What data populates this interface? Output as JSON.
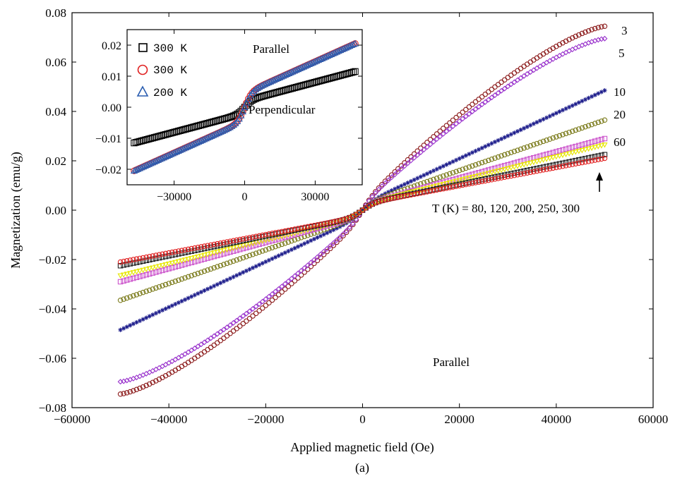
{
  "figure_label": "(a)",
  "chart_data": [
    {
      "type": "scatter",
      "xlabel": "Applied magnetic field (Oe)",
      "ylabel": "Magnetization (emu/g)",
      "xlim": [
        -60000,
        60000
      ],
      "ylim": [
        -0.08,
        0.08
      ],
      "xticks": [
        -60000,
        -40000,
        -20000,
        0,
        20000,
        40000,
        60000
      ],
      "yticks": [
        -0.08,
        -0.06,
        -0.04,
        -0.02,
        0.0,
        0.02,
        0.04,
        0.06,
        0.08
      ],
      "x_tick_labels": [
        "−60000",
        "−40000",
        "−20000",
        "0",
        "20000",
        "40000",
        "60000"
      ],
      "y_tick_labels": [
        "−0.08",
        "−0.06",
        "−0.04",
        "−0.02",
        "0.00",
        "0.02",
        "0.04",
        "0.06",
        "0.08"
      ],
      "grid": false,
      "x_range_data": [
        -50000,
        50000
      ],
      "series": [
        {
          "name": "3",
          "color": "#8b1a1a",
          "marker": "circle",
          "m_max": 0.0745,
          "shape": "superlinear"
        },
        {
          "name": "5",
          "color": "#9932cc",
          "marker": "diamond",
          "m_max": 0.0695,
          "shape": "superlinear"
        },
        {
          "name": "10",
          "color": "#1c1c8b",
          "marker": "star",
          "m_max": 0.0485,
          "shape": "linear_with_step"
        },
        {
          "name": "20",
          "color": "#7a7a1a",
          "marker": "circle",
          "m_max": 0.0365,
          "shape": "linear_with_step"
        },
        {
          "name": "60",
          "color": "#cc55cc",
          "marker": "square",
          "m_max": 0.029,
          "shape": "linear_with_step"
        },
        {
          "name": "80",
          "color": "#e6e600",
          "marker": "triangle-down",
          "m_max": 0.0265,
          "shape": "linear_with_step"
        },
        {
          "name": "250",
          "color": "#222222",
          "marker": "square",
          "m_max": 0.0225,
          "shape": "linear_with_step"
        },
        {
          "name": "300",
          "color": "#e02020",
          "marker": "circle",
          "m_max": 0.021,
          "shape": "linear_with_step"
        }
      ],
      "annotations": {
        "labels_right": [
          "3",
          "5",
          "10",
          "20",
          "60"
        ],
        "temperature_note": "T (K) = 80, 120, 200, 250, 300",
        "orientation": "Parallel"
      }
    },
    {
      "type": "scatter",
      "inset": true,
      "xlim": [
        -50000,
        50000
      ],
      "ylim": [
        -0.025,
        0.025
      ],
      "xticks": [
        -30000,
        0,
        30000
      ],
      "yticks": [
        -0.02,
        -0.01,
        0.0,
        0.01,
        0.02
      ],
      "x_tick_labels": [
        "−30000",
        "0",
        "30000"
      ],
      "y_tick_labels": [
        "−0.02",
        "−0.01",
        "0.00",
        "0.01",
        "0.02"
      ],
      "x_range_data": [
        -47000,
        47000
      ],
      "legend": [
        {
          "label": "300 K",
          "marker": "square",
          "color": "#000000"
        },
        {
          "label": "300 K",
          "marker": "circle",
          "color": "#e02020"
        },
        {
          "label": "200 K",
          "marker": "triangle",
          "color": "#2a5db0"
        }
      ],
      "series": [
        {
          "name": "300 K",
          "orientation": "Perpendicular",
          "color": "#000000",
          "marker": "square",
          "m_max": 0.0115
        },
        {
          "name": "300 K",
          "orientation": "Parallel",
          "color": "#e02020",
          "marker": "circle",
          "m_max": 0.0205
        },
        {
          "name": "200 K",
          "orientation": "Parallel",
          "color": "#2a5db0",
          "marker": "triangle",
          "m_max": 0.0205
        }
      ],
      "annotations": {
        "parallel": "Parallel",
        "perpendicular": "Perpendicular"
      }
    }
  ]
}
